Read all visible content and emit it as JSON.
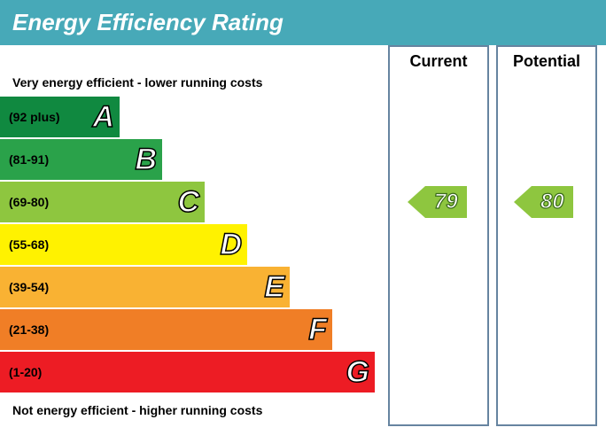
{
  "title": "Energy Efficiency Rating",
  "header_bg": "#47a9b8",
  "top_label": "Very energy efficient - lower running costs",
  "bottom_label": "Not energy efficient - higher running costs",
  "bar_base_width": 135,
  "bar_step_width": 48,
  "band_height": 46,
  "band_gap": 2,
  "bands": [
    {
      "range": "(92 plus)",
      "letter": "A",
      "color": "#108940"
    },
    {
      "range": "(81-91)",
      "letter": "B",
      "color": "#2aa24a"
    },
    {
      "range": "(69-80)",
      "letter": "C",
      "color": "#8ec63f"
    },
    {
      "range": "(55-68)",
      "letter": "D",
      "color": "#fff200"
    },
    {
      "range": "(39-54)",
      "letter": "E",
      "color": "#f9b233"
    },
    {
      "range": "(21-38)",
      "letter": "F",
      "color": "#f07e26"
    },
    {
      "range": "(1-20)",
      "letter": "G",
      "color": "#ed1c24"
    }
  ],
  "columns": {
    "current": {
      "label": "Current",
      "value": 79,
      "band_index": 2,
      "arrow_color": "#8ec63f"
    },
    "potential": {
      "label": "Potential",
      "value": 80,
      "band_index": 2,
      "arrow_color": "#8ec63f"
    }
  }
}
